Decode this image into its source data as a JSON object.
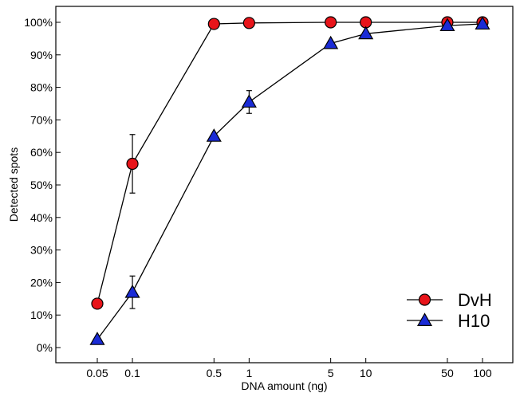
{
  "chart_data": {
    "type": "line",
    "x_scale": "log",
    "x": [
      0.05,
      0.1,
      0.5,
      1,
      5,
      10,
      50,
      100
    ],
    "x_tick_labels": [
      "0.05",
      "0.1",
      "0.5",
      "1",
      "5",
      "10",
      "50",
      "100"
    ],
    "y_tick_labels": [
      "0%",
      "10%",
      "20%",
      "30%",
      "40%",
      "50%",
      "60%",
      "70%",
      "80%",
      "90%",
      "100%"
    ],
    "xlabel": "DNA amount (ng)",
    "ylabel": "Detected spots",
    "ylim": [
      0,
      100
    ],
    "grid": false,
    "legend": "bottom-right",
    "series": [
      {
        "name": "DvH",
        "marker": "circle",
        "color": "#e8141a",
        "values": [
          13.5,
          56.5,
          99.5,
          99.8,
          100,
          100,
          100,
          100
        ],
        "error": [
          null,
          9,
          null,
          null,
          null,
          null,
          null,
          null
        ]
      },
      {
        "name": "H10",
        "marker": "triangle",
        "color": "#1a2bd6",
        "values": [
          2.5,
          17,
          65,
          75.5,
          93.5,
          96.5,
          99,
          99.5
        ],
        "error": [
          null,
          5,
          null,
          3.5,
          null,
          null,
          null,
          null
        ]
      }
    ]
  }
}
